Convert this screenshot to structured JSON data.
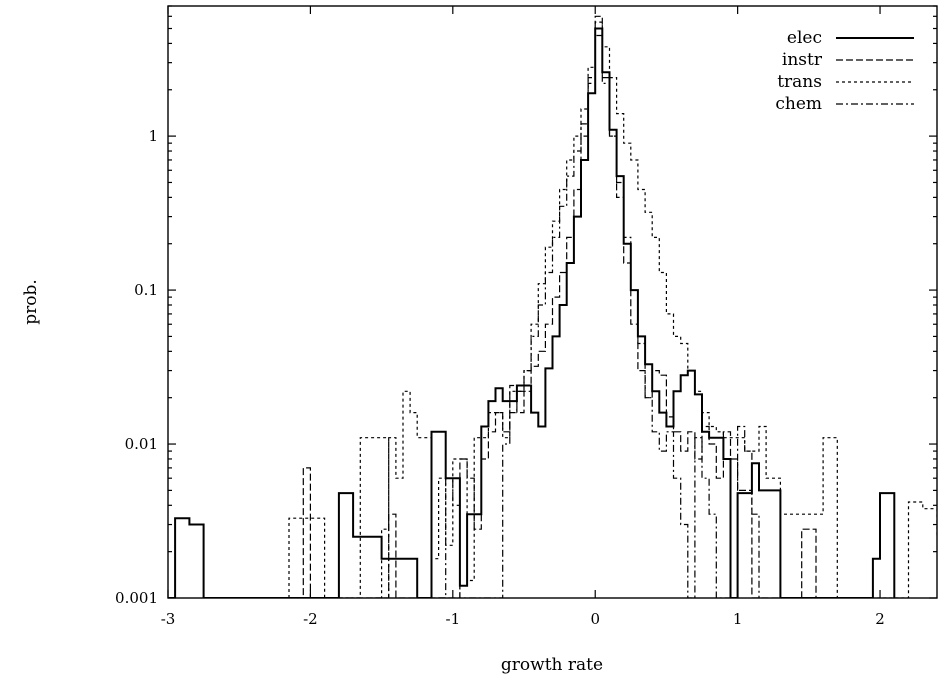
{
  "chart_data": {
    "type": "line",
    "xlabel": "growth rate",
    "ylabel": "prob.",
    "xlim": [
      -3,
      2.4
    ],
    "ylim": [
      0.001,
      7
    ],
    "yscale": "log",
    "grid": false,
    "legend_position": "top-right",
    "x_ticks": [
      "-3",
      "-2",
      "-1",
      "0",
      "1",
      "2"
    ],
    "y_ticks": [
      "0.001",
      "0.01",
      "0.1",
      "1"
    ],
    "series": [
      {
        "name": "elec",
        "style": "solid",
        "width": 2.0,
        "steps": [
          [
            -3.0,
            0.001
          ],
          [
            -2.95,
            0.0033
          ],
          [
            -2.85,
            0.003
          ],
          [
            -2.75,
            0.001
          ],
          [
            -1.8,
            0.001
          ],
          [
            -1.8,
            0.0048
          ],
          [
            -1.7,
            0.0025
          ],
          [
            -1.6,
            0.0025
          ],
          [
            -1.5,
            0.0018
          ],
          [
            -1.35,
            0.0018
          ],
          [
            -1.25,
            0.001
          ],
          [
            -1.15,
            0.012
          ],
          [
            -1.05,
            0.006
          ],
          [
            -0.95,
            0.0012
          ],
          [
            -0.9,
            0.0035
          ],
          [
            -0.8,
            0.013
          ],
          [
            -0.75,
            0.019
          ],
          [
            -0.7,
            0.023
          ],
          [
            -0.65,
            0.019
          ],
          [
            -0.55,
            0.024
          ],
          [
            -0.45,
            0.016
          ],
          [
            -0.4,
            0.013
          ],
          [
            -0.35,
            0.031
          ],
          [
            -0.3,
            0.05
          ],
          [
            -0.25,
            0.08
          ],
          [
            -0.2,
            0.15
          ],
          [
            -0.15,
            0.3
          ],
          [
            -0.1,
            0.7
          ],
          [
            -0.05,
            1.9
          ],
          [
            0.0,
            5.0
          ],
          [
            0.05,
            2.6
          ],
          [
            0.1,
            1.1
          ],
          [
            0.15,
            0.55
          ],
          [
            0.2,
            0.2
          ],
          [
            0.25,
            0.1
          ],
          [
            0.3,
            0.05
          ],
          [
            0.35,
            0.033
          ],
          [
            0.4,
            0.022
          ],
          [
            0.45,
            0.016
          ],
          [
            0.5,
            0.013
          ],
          [
            0.55,
            0.022
          ],
          [
            0.6,
            0.028
          ],
          [
            0.65,
            0.03
          ],
          [
            0.7,
            0.021
          ],
          [
            0.75,
            0.012
          ],
          [
            0.8,
            0.011
          ],
          [
            0.9,
            0.008
          ],
          [
            0.95,
            0.001
          ],
          [
            1.0,
            0.0048
          ],
          [
            1.1,
            0.0075
          ],
          [
            1.15,
            0.005
          ],
          [
            1.2,
            0.005
          ],
          [
            1.3,
            0.001
          ],
          [
            1.9,
            0.001
          ],
          [
            1.95,
            0.0018
          ],
          [
            2.0,
            0.0048
          ],
          [
            2.1,
            0.001
          ]
        ]
      },
      {
        "name": "instr",
        "style": "longdash",
        "width": 1.2,
        "steps": [
          [
            -2.1,
            0.001
          ],
          [
            -2.05,
            0.007
          ],
          [
            -2.0,
            0.001
          ],
          [
            -1.5,
            0.001
          ],
          [
            -1.45,
            0.0035
          ],
          [
            -1.4,
            0.001
          ],
          [
            -1.0,
            0.001
          ],
          [
            -0.95,
            0.008
          ],
          [
            -0.9,
            0.006
          ],
          [
            -0.85,
            0.0028
          ],
          [
            -0.8,
            0.008
          ],
          [
            -0.75,
            0.012
          ],
          [
            -0.7,
            0.016
          ],
          [
            -0.65,
            0.012
          ],
          [
            -0.6,
            0.024
          ],
          [
            -0.55,
            0.016
          ],
          [
            -0.5,
            0.022
          ],
          [
            -0.45,
            0.032
          ],
          [
            -0.4,
            0.04
          ],
          [
            -0.35,
            0.06
          ],
          [
            -0.3,
            0.09
          ],
          [
            -0.25,
            0.13
          ],
          [
            -0.2,
            0.22
          ],
          [
            -0.15,
            0.45
          ],
          [
            -0.1,
            1.0
          ],
          [
            -0.05,
            2.4
          ],
          [
            0.0,
            6.0
          ],
          [
            0.05,
            2.4
          ],
          [
            0.1,
            1.0
          ],
          [
            0.15,
            0.4
          ],
          [
            0.2,
            0.15
          ],
          [
            0.25,
            0.06
          ],
          [
            0.3,
            0.03
          ],
          [
            0.35,
            0.02
          ],
          [
            0.4,
            0.03
          ],
          [
            0.45,
            0.028
          ],
          [
            0.5,
            0.015
          ],
          [
            0.55,
            0.012
          ],
          [
            0.6,
            0.009
          ],
          [
            0.65,
            0.012
          ],
          [
            0.7,
            0.008
          ],
          [
            0.75,
            0.013
          ],
          [
            0.8,
            0.01
          ],
          [
            0.85,
            0.006
          ],
          [
            0.9,
            0.012
          ],
          [
            0.95,
            0.008
          ],
          [
            1.0,
            0.005
          ],
          [
            1.1,
            0.001
          ],
          [
            1.4,
            0.001
          ],
          [
            1.45,
            0.0028
          ],
          [
            1.5,
            0.0028
          ],
          [
            1.55,
            0.001
          ]
        ]
      },
      {
        "name": "trans",
        "style": "shortdash",
        "width": 1.2,
        "steps": [
          [
            -2.15,
            0.001
          ],
          [
            -2.15,
            0.0033
          ],
          [
            -2.0,
            0.0033
          ],
          [
            -1.9,
            0.001
          ],
          [
            -1.65,
            0.001
          ],
          [
            -1.65,
            0.011
          ],
          [
            -1.55,
            0.011
          ],
          [
            -1.45,
            0.001
          ],
          [
            -1.55,
            0.001
          ],
          [
            -1.5,
            0.0028
          ],
          [
            -1.45,
            0.011
          ],
          [
            -1.4,
            0.006
          ],
          [
            -1.35,
            0.022
          ],
          [
            -1.3,
            0.016
          ],
          [
            -1.25,
            0.011
          ],
          [
            -1.15,
            0.0018
          ],
          [
            -1.1,
            0.006
          ],
          [
            -1.05,
            0.0022
          ],
          [
            -1.0,
            0.008
          ],
          [
            -0.9,
            0.0013
          ],
          [
            -0.85,
            0.011
          ],
          [
            -0.75,
            0.016
          ],
          [
            -0.65,
            0.011
          ],
          [
            -0.6,
            0.022
          ],
          [
            -0.5,
            0.03
          ],
          [
            -0.45,
            0.06
          ],
          [
            -0.4,
            0.11
          ],
          [
            -0.35,
            0.19
          ],
          [
            -0.3,
            0.28
          ],
          [
            -0.25,
            0.45
          ],
          [
            -0.2,
            0.7
          ],
          [
            -0.15,
            1.0
          ],
          [
            -0.1,
            1.5
          ],
          [
            -0.05,
            2.8
          ],
          [
            0.0,
            5.5
          ],
          [
            0.05,
            3.8
          ],
          [
            0.1,
            2.4
          ],
          [
            0.15,
            1.4
          ],
          [
            0.2,
            0.9
          ],
          [
            0.25,
            0.7
          ],
          [
            0.3,
            0.45
          ],
          [
            0.35,
            0.32
          ],
          [
            0.4,
            0.22
          ],
          [
            0.45,
            0.13
          ],
          [
            0.5,
            0.07
          ],
          [
            0.55,
            0.05
          ],
          [
            0.6,
            0.045
          ],
          [
            0.65,
            0.03
          ],
          [
            0.7,
            0.022
          ],
          [
            0.75,
            0.016
          ],
          [
            0.8,
            0.013
          ],
          [
            0.85,
            0.012
          ],
          [
            0.9,
            0.011
          ],
          [
            1.0,
            0.011
          ],
          [
            1.05,
            0.009
          ],
          [
            1.15,
            0.013
          ],
          [
            1.2,
            0.006
          ],
          [
            1.3,
            0.0035
          ],
          [
            1.4,
            0.0035
          ],
          [
            1.5,
            0.0035
          ],
          [
            1.55,
            0.0035
          ],
          [
            1.6,
            0.011
          ],
          [
            1.7,
            0.001
          ],
          [
            2.15,
            0.001
          ],
          [
            2.2,
            0.0042
          ],
          [
            2.3,
            0.0038
          ],
          [
            2.4,
            0.0025
          ]
        ]
      },
      {
        "name": "chem",
        "style": "dashdot",
        "width": 1.2,
        "steps": [
          [
            -1.1,
            0.001
          ],
          [
            -1.05,
            0.006
          ],
          [
            -1.0,
            0.004
          ],
          [
            -0.95,
            0.001
          ],
          [
            -0.7,
            0.001
          ],
          [
            -0.65,
            0.01
          ],
          [
            -0.6,
            0.016
          ],
          [
            -0.55,
            0.022
          ],
          [
            -0.5,
            0.03
          ],
          [
            -0.45,
            0.05
          ],
          [
            -0.4,
            0.08
          ],
          [
            -0.35,
            0.13
          ],
          [
            -0.3,
            0.22
          ],
          [
            -0.25,
            0.35
          ],
          [
            -0.2,
            0.55
          ],
          [
            -0.15,
            0.8
          ],
          [
            -0.1,
            1.2
          ],
          [
            -0.05,
            2.2
          ],
          [
            0.0,
            4.5
          ],
          [
            0.05,
            2.2
          ],
          [
            0.1,
            1.0
          ],
          [
            0.15,
            0.5
          ],
          [
            0.2,
            0.22
          ],
          [
            0.25,
            0.1
          ],
          [
            0.3,
            0.045
          ],
          [
            0.35,
            0.02
          ],
          [
            0.4,
            0.012
          ],
          [
            0.45,
            0.009
          ],
          [
            0.5,
            0.012
          ],
          [
            0.55,
            0.006
          ],
          [
            0.6,
            0.003
          ],
          [
            0.65,
            0.001
          ],
          [
            0.7,
            0.011
          ],
          [
            0.75,
            0.006
          ],
          [
            0.8,
            0.0035
          ],
          [
            0.85,
            0.001
          ],
          [
            0.95,
            0.001
          ],
          [
            1.0,
            0.013
          ],
          [
            1.05,
            0.009
          ],
          [
            1.1,
            0.0035
          ],
          [
            1.15,
            0.001
          ]
        ]
      }
    ]
  }
}
